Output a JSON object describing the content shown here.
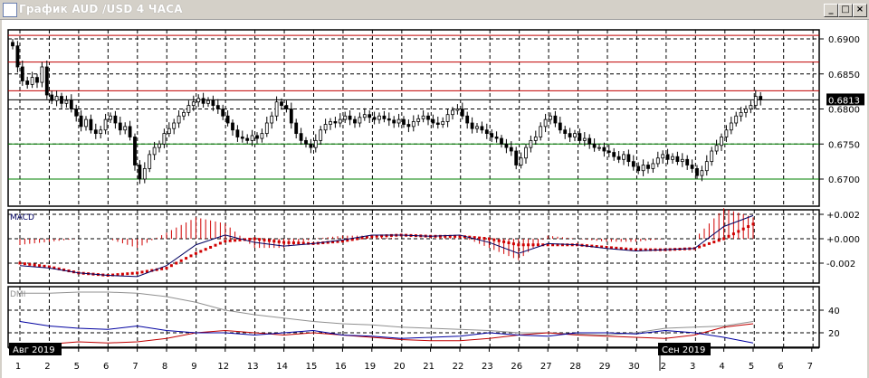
{
  "window": {
    "title": "График AUD /USD  4 ЧАСА",
    "buttons": {
      "minimize": "_",
      "maximize": "□",
      "close": "×"
    }
  },
  "chart_data": [
    {
      "type": "candlestick",
      "timeframe": "4h",
      "symbol": "AUD/USD",
      "ylim": [
        0.6675,
        0.691
      ],
      "y_ticks": [
        "0.6900",
        "0.6850",
        "0.6800",
        "0.6750",
        "0.6700"
      ],
      "current_price": "0.6813",
      "levels": [
        {
          "value": 0.6905,
          "color": "#c00000"
        },
        {
          "value": 0.6867,
          "color": "#c00000"
        },
        {
          "value": 0.6826,
          "color": "#c00000"
        },
        {
          "value": 0.6813,
          "color": "#000000"
        },
        {
          "value": 0.675,
          "color": "#008000"
        },
        {
          "value": 0.67,
          "color": "#008000"
        }
      ],
      "closes": [
        0.689,
        0.686,
        0.684,
        0.6835,
        0.6845,
        0.6838,
        0.686,
        0.682,
        0.6812,
        0.6818,
        0.6808,
        0.6812,
        0.68,
        0.679,
        0.6775,
        0.6785,
        0.677,
        0.6765,
        0.677,
        0.6785,
        0.679,
        0.678,
        0.677,
        0.6775,
        0.676,
        0.672,
        0.67,
        0.6715,
        0.6735,
        0.6745,
        0.675,
        0.6765,
        0.6772,
        0.678,
        0.679,
        0.6795,
        0.6805,
        0.681,
        0.6815,
        0.6808,
        0.6812,
        0.6805,
        0.68,
        0.679,
        0.678,
        0.677,
        0.676,
        0.6758,
        0.6755,
        0.6762,
        0.6758,
        0.6765,
        0.678,
        0.679,
        0.681,
        0.6805,
        0.68,
        0.678,
        0.6765,
        0.6755,
        0.675,
        0.6745,
        0.6755,
        0.677,
        0.6778,
        0.6782,
        0.678,
        0.6785,
        0.679,
        0.6785,
        0.678,
        0.6788,
        0.6792,
        0.6788,
        0.6785,
        0.679,
        0.6786,
        0.6784,
        0.678,
        0.6785,
        0.6778,
        0.6775,
        0.6782,
        0.6786,
        0.679,
        0.6785,
        0.678,
        0.6778,
        0.6782,
        0.6792,
        0.6798,
        0.68,
        0.679,
        0.678,
        0.6772,
        0.6775,
        0.677,
        0.6765,
        0.676,
        0.6758,
        0.675,
        0.6745,
        0.674,
        0.672,
        0.673,
        0.6745,
        0.6755,
        0.676,
        0.6775,
        0.6785,
        0.679,
        0.678,
        0.677,
        0.6765,
        0.676,
        0.6765,
        0.6755,
        0.6758,
        0.675,
        0.6745,
        0.6745,
        0.674,
        0.6738,
        0.6732,
        0.6728,
        0.6735,
        0.6725,
        0.6718,
        0.6712,
        0.672,
        0.6715,
        0.6722,
        0.673,
        0.6735,
        0.6728,
        0.6732,
        0.6725,
        0.6728,
        0.672,
        0.6715,
        0.6705,
        0.6712,
        0.6725,
        0.674,
        0.6748,
        0.676,
        0.677,
        0.678,
        0.679,
        0.6795,
        0.68,
        0.6805,
        0.6818,
        0.6813
      ]
    },
    {
      "type": "line",
      "name": "MACD",
      "label": "MACD",
      "ylim": [
        -0.0035,
        0.0026
      ],
      "y_ticks": [
        "+0.002",
        "+0.000",
        "-0.002"
      ],
      "series": [
        {
          "role": "macd",
          "color": "#000060",
          "values": [
            -0.0022,
            -0.0024,
            -0.0028,
            -0.003,
            -0.0031,
            -0.0022,
            -0.0005,
            0.0003,
            -0.0003,
            -0.0006,
            -0.0004,
            -0.0001,
            0.0003,
            0.0003,
            0.0002,
            0.0003,
            -0.0003,
            -0.0012,
            -0.0004,
            -0.0005,
            -0.0008,
            -0.001,
            -0.0009,
            -0.0008,
            0.001,
            0.0019
          ]
        },
        {
          "role": "signal",
          "color": "#d00000",
          "values": [
            -0.002,
            -0.0023,
            -0.0028,
            -0.003,
            -0.0028,
            -0.0024,
            -0.0012,
            -0.0002,
            0.0,
            -0.0003,
            -0.0004,
            -0.0002,
            0.0002,
            0.0003,
            0.0002,
            0.0002,
            0.0,
            -0.0005,
            -0.0005,
            -0.0005,
            -0.0007,
            -0.0009,
            -0.0009,
            -0.0008,
            0.0,
            0.0012
          ]
        }
      ]
    },
    {
      "type": "line",
      "name": "DMI",
      "label": "DMI",
      "ylim": [
        8,
        60
      ],
      "y_ticks": [
        "40",
        "20"
      ],
      "series": [
        {
          "role": "adx",
          "color": "#909090",
          "values": [
            55,
            55,
            56,
            56,
            55,
            52,
            47,
            40,
            36,
            33,
            30,
            28,
            27,
            25,
            24,
            23,
            22,
            20,
            20,
            19,
            18,
            20,
            24,
            25,
            26,
            30
          ]
        },
        {
          "role": "plus_di",
          "color": "#c00000",
          "values": [
            8,
            10,
            12,
            11,
            12,
            15,
            20,
            22,
            20,
            18,
            20,
            18,
            16,
            14,
            13,
            13,
            15,
            18,
            20,
            18,
            17,
            16,
            15,
            18,
            25,
            28
          ]
        },
        {
          "role": "minus_di",
          "color": "#0000a0",
          "values": [
            30,
            26,
            24,
            23,
            26,
            22,
            20,
            20,
            18,
            20,
            22,
            18,
            17,
            15,
            16,
            17,
            20,
            18,
            17,
            20,
            20,
            19,
            22,
            20,
            16,
            11
          ]
        }
      ]
    }
  ],
  "x_axis": {
    "days": [
      "1",
      "2",
      "5",
      "6",
      "7",
      "8",
      "9",
      "12",
      "13",
      "14",
      "15",
      "16",
      "19",
      "20",
      "21",
      "22",
      "23",
      "26",
      "27",
      "28",
      "29",
      "30",
      "2",
      "3",
      "4",
      "5",
      "6",
      "7"
    ],
    "months": [
      {
        "label": "Авг 2019",
        "day_index": 0
      },
      {
        "label": "Сен 2019",
        "day_index": 22
      }
    ]
  }
}
